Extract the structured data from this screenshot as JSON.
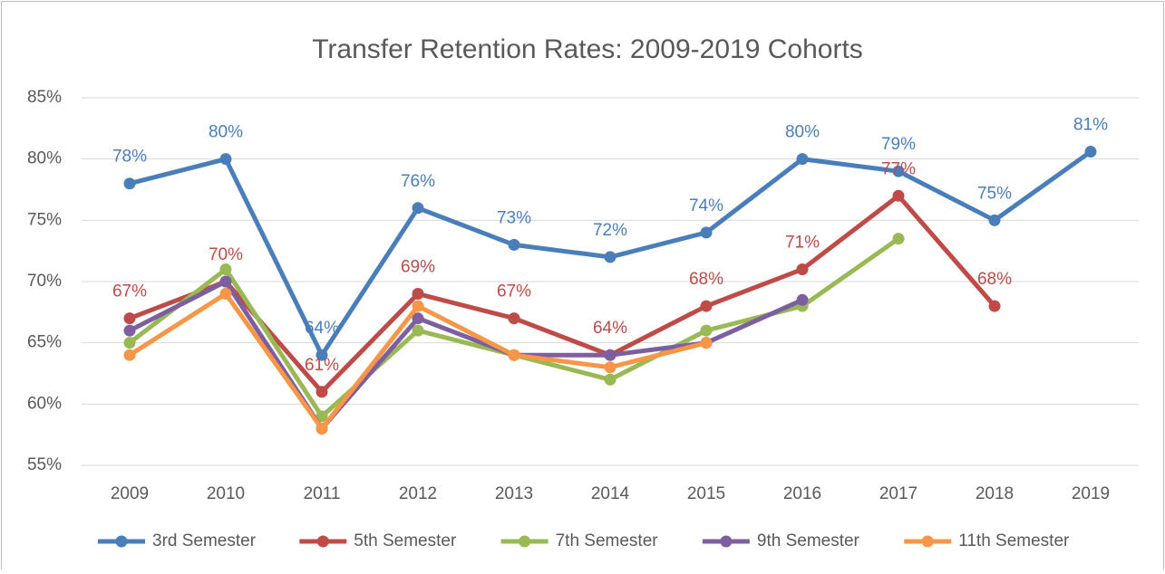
{
  "chart_data": {
    "type": "line",
    "title": "Transfer Retention Rates:  2009-2019 Cohorts",
    "categories": [
      "2009",
      "2010",
      "2011",
      "2012",
      "2013",
      "2014",
      "2015",
      "2016",
      "2017",
      "2018",
      "2019"
    ],
    "ylim": [
      55,
      85
    ],
    "yticks": [
      {
        "value": 55,
        "label": "55%"
      },
      {
        "value": 60,
        "label": "60%"
      },
      {
        "value": 65,
        "label": "65%"
      },
      {
        "value": 70,
        "label": "70%"
      },
      {
        "value": 75,
        "label": "75%"
      },
      {
        "value": 80,
        "label": "80%"
      },
      {
        "value": 85,
        "label": "85%"
      }
    ],
    "grid": true,
    "legend": "bottom",
    "series": [
      {
        "name": "3rd Semester",
        "color": "#4a7ebb",
        "values": [
          78,
          80,
          64,
          76,
          73,
          72,
          74,
          80,
          79,
          75,
          80.6
        ],
        "value_labels": [
          "78%",
          "80%",
          "64%",
          "76%",
          "73%",
          "72%",
          "74%",
          "80%",
          "79%",
          "75%",
          "81%"
        ]
      },
      {
        "name": "5th Semester",
        "color": "#be4b48",
        "values": [
          67,
          70,
          61,
          69,
          67,
          64,
          68,
          71,
          77,
          68,
          null
        ],
        "value_labels": [
          "67%",
          "70%",
          "61%",
          "69%",
          "67%",
          "64%",
          "68%",
          "71%",
          "77%",
          "68%",
          null
        ]
      },
      {
        "name": "7th Semester",
        "color": "#98b954",
        "values": [
          65,
          71,
          59,
          66,
          64,
          62,
          66,
          68,
          73.5,
          null,
          null
        ]
      },
      {
        "name": "9th Semester",
        "color": "#7d5fa0",
        "values": [
          66,
          70,
          58,
          67,
          64,
          64,
          65,
          68.5,
          null,
          null,
          null
        ]
      },
      {
        "name": "11th Semester",
        "color": "#f79646",
        "values": [
          64,
          69,
          58,
          68,
          64,
          63,
          65,
          null,
          null,
          null,
          null
        ]
      }
    ]
  }
}
